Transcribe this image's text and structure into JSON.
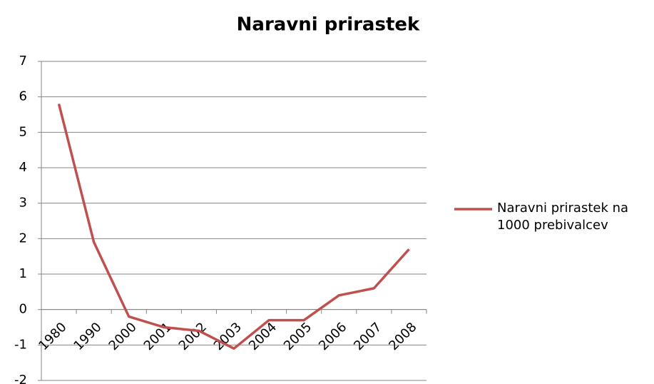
{
  "chart_data": {
    "type": "line",
    "title": "Naravni prirastek",
    "categories": [
      "1980",
      "1990",
      "2000",
      "2001",
      "2002",
      "2003",
      "2004",
      "2005",
      "2006",
      "2007",
      "2008"
    ],
    "series": [
      {
        "name": "Naravni prirastek na 1000 prebivalcev",
        "color": "#c0504d",
        "values": [
          5.8,
          1.9,
          -0.2,
          -0.5,
          -0.6,
          -1.1,
          -0.3,
          -0.3,
          0.4,
          0.6,
          1.7
        ]
      }
    ],
    "ylim": [
      -2,
      7
    ],
    "yticks": [
      -2,
      -1,
      0,
      1,
      2,
      3,
      4,
      5,
      6,
      7
    ],
    "grid": true,
    "legend": "right"
  }
}
